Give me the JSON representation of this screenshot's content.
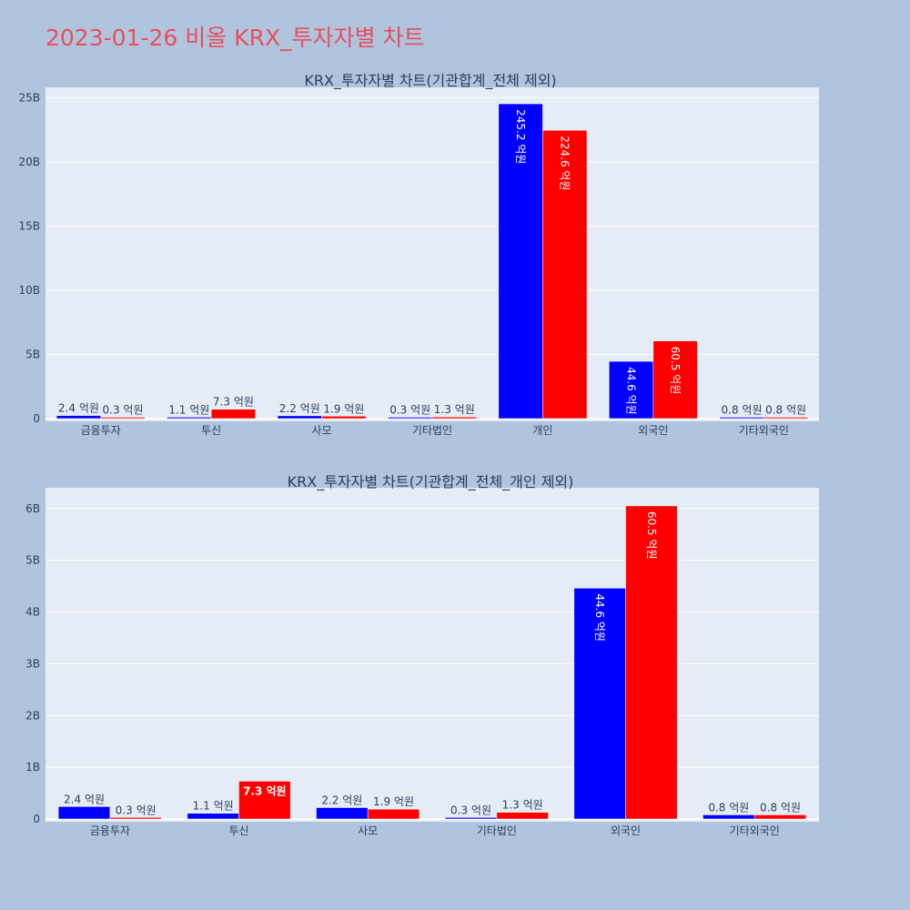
{
  "page": {
    "title": "2023-01-26 비올 KRX_투자자별 차트"
  },
  "colors": {
    "buy": "#0000ff",
    "sell": "#ff0000",
    "plot_bg": "#e5ecf6",
    "paper_bg": "#b0c4de",
    "title": "#e8505b",
    "text": "#2a3f5f"
  },
  "chart_data": [
    {
      "type": "bar",
      "title": "KRX_투자자별 차트(기관합계_전체 제외)",
      "categories": [
        "금융투자",
        "투신",
        "사모",
        "기타법인",
        "개인",
        "외국인",
        "기타외국인"
      ],
      "series": [
        {
          "color": "#0000ff",
          "values": [
            240000000,
            110000000,
            220000000,
            30000000,
            24520000000,
            4460000000,
            80000000
          ],
          "labels": [
            "2.4 억원",
            "1.1 억원",
            "2.2 억원",
            "0.3 억원",
            "245.2 억원",
            "44.6 억원",
            "0.8 억원"
          ]
        },
        {
          "color": "#ff0000",
          "values": [
            30000000,
            730000000,
            190000000,
            130000000,
            22460000000,
            6050000000,
            80000000
          ],
          "labels": [
            "0.3 억원",
            "7.3 억원",
            "1.9 억원",
            "1.3 억원",
            "224.6 억원",
            "60.5 억원",
            "0.8 억원"
          ]
        }
      ],
      "yticks": [
        0,
        5000000000,
        10000000000,
        15000000000,
        20000000000,
        25000000000
      ],
      "ytick_labels": [
        "0",
        "5B",
        "10B",
        "15B",
        "20B",
        "25B"
      ],
      "ylim": [
        0,
        25800000000
      ],
      "grid": true
    },
    {
      "type": "bar",
      "title": "KRX_투자자별 차트(기관합계_전체_개인 제외)",
      "categories": [
        "금융투자",
        "투신",
        "사모",
        "기타법인",
        "외국인",
        "기타외국인"
      ],
      "series": [
        {
          "color": "#0000ff",
          "values": [
            240000000,
            110000000,
            220000000,
            30000000,
            4460000000,
            80000000
          ],
          "labels": [
            "2.4 억원",
            "1.1 억원",
            "2.2 억원",
            "0.3 억원",
            "44.6 억원",
            "0.8 억원"
          ]
        },
        {
          "color": "#ff0000",
          "values": [
            30000000,
            730000000,
            190000000,
            130000000,
            6050000000,
            80000000
          ],
          "labels": [
            "0.3 억원",
            "7.3 억원",
            "1.9 억원",
            "1.3 억원",
            "60.5 억원",
            "0.8 억원"
          ]
        }
      ],
      "yticks": [
        0,
        1000000000,
        2000000000,
        3000000000,
        4000000000,
        5000000000,
        6000000000
      ],
      "ytick_labels": [
        "0",
        "1B",
        "2B",
        "3B",
        "4B",
        "5B",
        "6B"
      ],
      "ylim": [
        0,
        6400000000
      ],
      "grid": true
    }
  ]
}
